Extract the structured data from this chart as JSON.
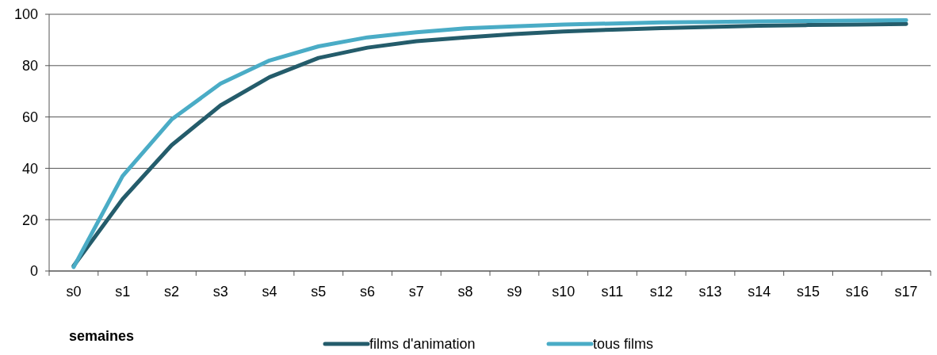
{
  "chart_data": {
    "type": "line",
    "xlabel": "semaines",
    "categories": [
      "s0",
      "s1",
      "s2",
      "s3",
      "s4",
      "s5",
      "s6",
      "s7",
      "s8",
      "s9",
      "s10",
      "s11",
      "s12",
      "s13",
      "s14",
      "s15",
      "s16",
      "s17"
    ],
    "series": [
      {
        "name": "films d'animation",
        "color": "#245c6b",
        "values": [
          2,
          28,
          49,
          64.5,
          75.5,
          83,
          87,
          89.5,
          91,
          92.3,
          93.3,
          94,
          94.6,
          95.1,
          95.5,
          95.8,
          96,
          96.2
        ]
      },
      {
        "name": "tous films",
        "color": "#4aacc6",
        "values": [
          1.5,
          37,
          59,
          73,
          82,
          87.5,
          91,
          93,
          94.5,
          95.3,
          96,
          96.4,
          96.8,
          97,
          97.2,
          97.4,
          97.5,
          97.7
        ]
      }
    ],
    "ylim": [
      0,
      100
    ],
    "yticks": [
      0,
      20,
      40,
      60,
      80,
      100
    ],
    "grid": "y",
    "legend": "bottom",
    "marker": "none",
    "line_style": "solid"
  }
}
